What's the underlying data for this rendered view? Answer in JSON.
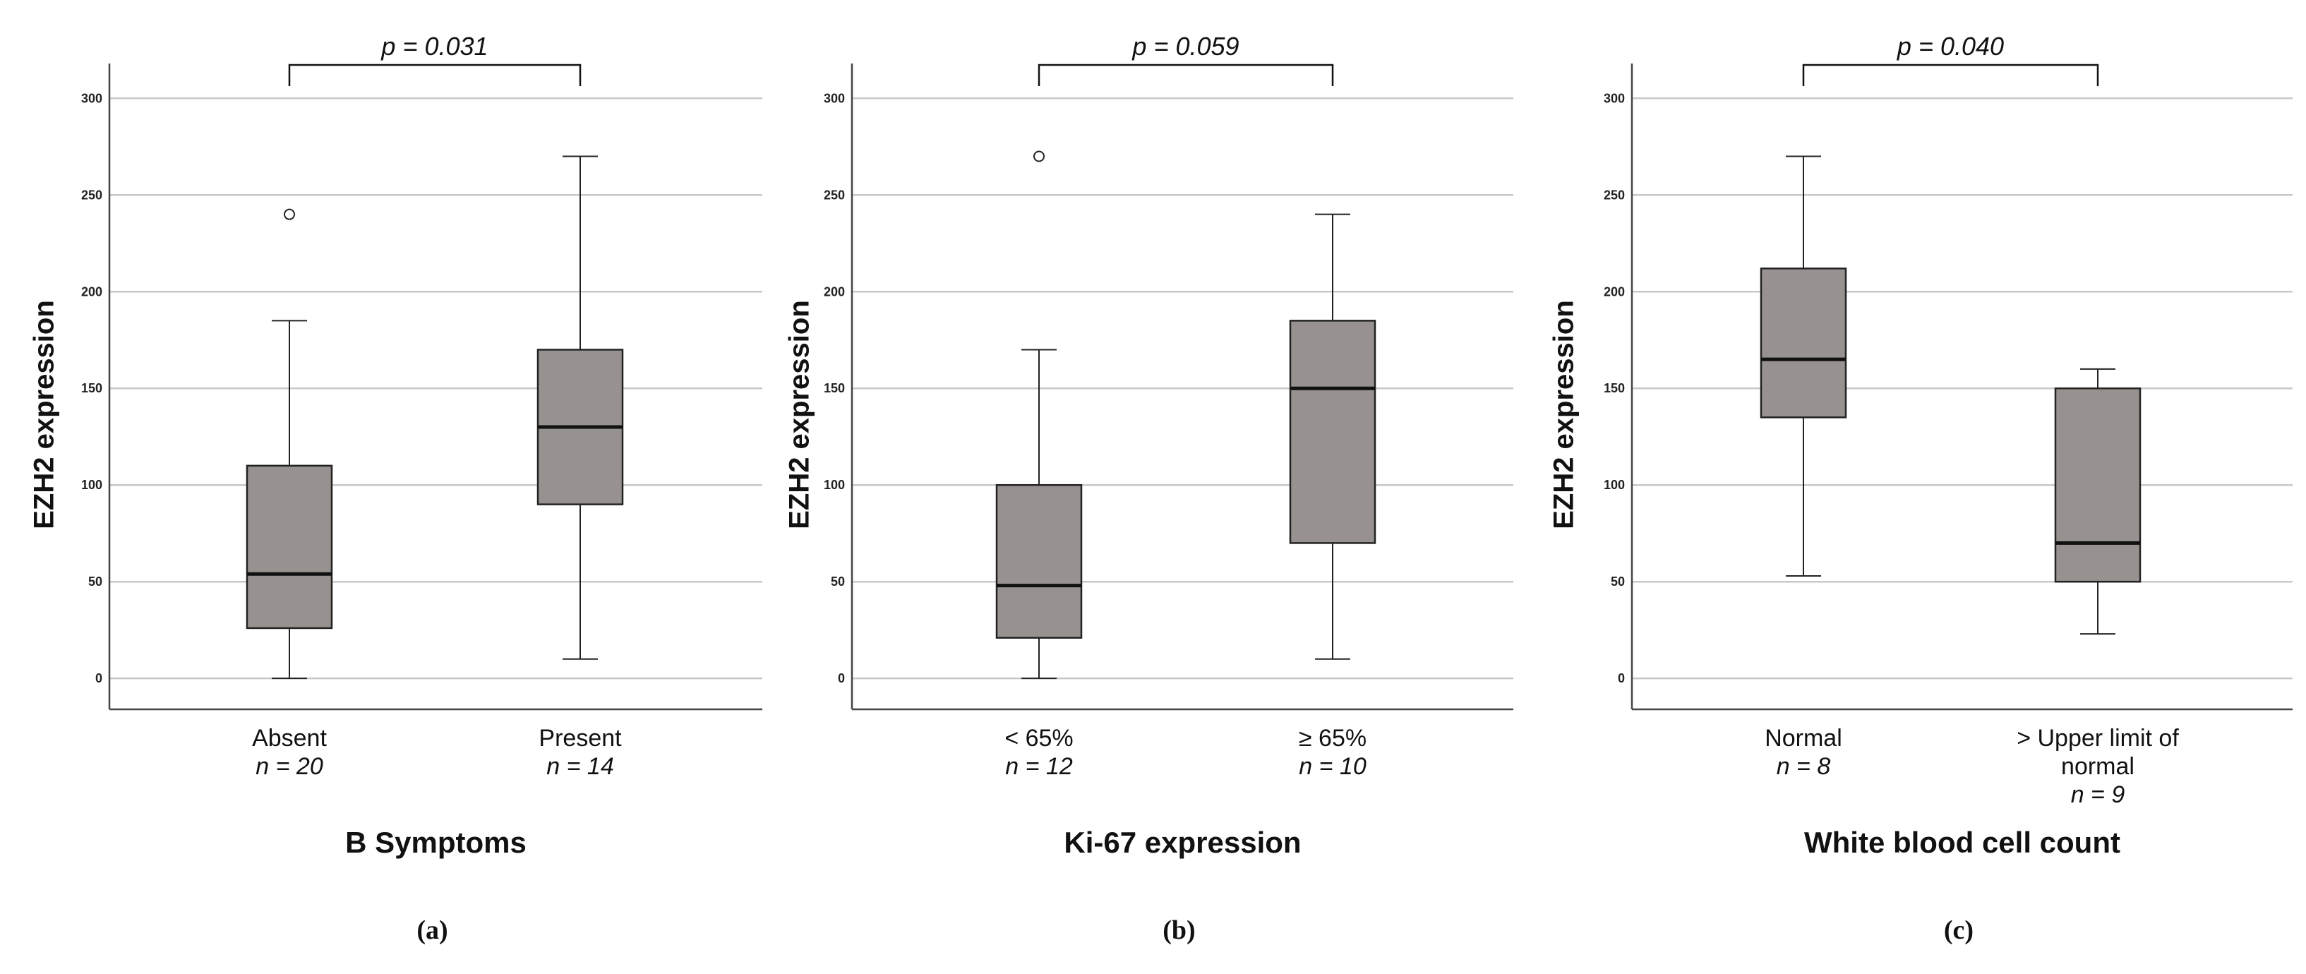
{
  "chart_data": [
    {
      "type": "box",
      "panel_label": "(a)",
      "xlabel": "B Symptoms",
      "ylabel": "EZH2 expression",
      "ylim": [
        -16,
        318
      ],
      "yticks": [
        0,
        50,
        100,
        150,
        200,
        250,
        300
      ],
      "p_value_text": "p = 0.031",
      "groups": [
        {
          "category": "Absent",
          "n_text": "n = 20",
          "min": 0,
          "q1": 26,
          "median": 54,
          "q3": 110,
          "max": 185,
          "outliers": [
            240
          ]
        },
        {
          "category": "Present",
          "n_text": "n = 14",
          "min": 10,
          "q1": 90,
          "median": 130,
          "q3": 170,
          "max": 270,
          "outliers": []
        }
      ]
    },
    {
      "type": "box",
      "panel_label": "(b)",
      "xlabel": "Ki-67 expression",
      "ylabel": "EZH2 expression",
      "ylim": [
        -16,
        318
      ],
      "yticks": [
        0,
        50,
        100,
        150,
        200,
        250,
        300
      ],
      "p_value_text": "p = 0.059",
      "groups": [
        {
          "category": "< 65%",
          "n_text": "n = 12",
          "min": 0,
          "q1": 21,
          "median": 48,
          "q3": 100,
          "max": 170,
          "outliers": [
            270
          ]
        },
        {
          "category": "≥ 65%",
          "n_text": "n = 10",
          "min": 10,
          "q1": 70,
          "median": 150,
          "q3": 185,
          "max": 240,
          "outliers": []
        }
      ]
    },
    {
      "type": "box",
      "panel_label": "(c)",
      "xlabel": "White blood cell count",
      "ylabel": "EZH2 expression",
      "ylim": [
        -16,
        318
      ],
      "yticks": [
        0,
        50,
        100,
        150,
        200,
        250,
        300
      ],
      "p_value_text": "p = 0.040",
      "groups": [
        {
          "category": "Normal",
          "n_text": "n = 8",
          "min": 53,
          "q1": 135,
          "median": 165,
          "q3": 212,
          "max": 270,
          "outliers": []
        },
        {
          "category": "> Upper limit of normal",
          "n_text": "n = 9",
          "min": 23,
          "q1": 50,
          "median": 70,
          "q3": 150,
          "max": 160,
          "outliers": []
        }
      ]
    }
  ],
  "colors": {
    "box_fill": "#979290",
    "stroke": "#222222",
    "grid": "#c8c8c8"
  }
}
